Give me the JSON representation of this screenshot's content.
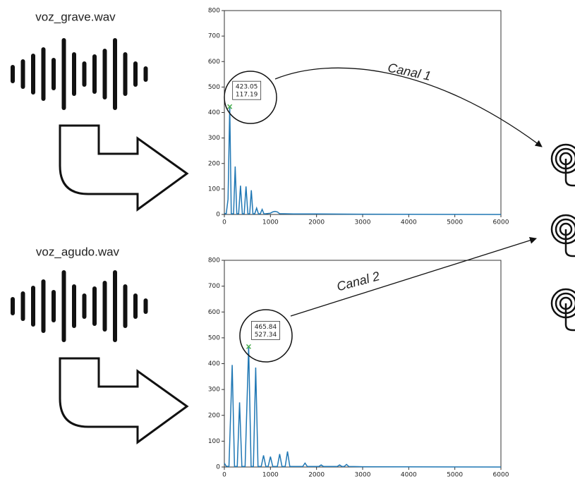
{
  "files": [
    "voz_grave.wav",
    "voz_agudo.wav"
  ],
  "channels": [
    "Canal 1",
    "Canal 2"
  ],
  "chart_data": [
    {
      "type": "line",
      "color": "#1f77b4",
      "x": [
        0,
        40,
        80,
        117,
        150,
        200,
        235,
        270,
        310,
        350,
        390,
        430,
        470,
        510,
        550,
        585,
        620,
        660,
        700,
        740,
        780,
        820,
        860,
        1000,
        1050,
        1100,
        1150,
        1200,
        1500,
        2000,
        3000,
        6000
      ],
      "values": [
        5,
        2,
        60,
        423,
        2,
        3,
        188,
        2,
        3,
        113,
        2,
        3,
        110,
        2,
        3,
        95,
        2,
        3,
        25,
        2,
        3,
        20,
        2,
        5,
        10,
        12,
        10,
        3,
        2,
        2,
        1,
        0
      ],
      "xlim": [
        0,
        6000
      ],
      "ylim": [
        0,
        800
      ],
      "xticks": [
        0,
        1000,
        2000,
        3000,
        4000,
        5000,
        6000
      ],
      "yticks": [
        0,
        100,
        200,
        300,
        400,
        500,
        600,
        700,
        800
      ],
      "annotation": {
        "y": 423.05,
        "x": 117.19
      }
    },
    {
      "type": "line",
      "color": "#1f77b4",
      "x": [
        0,
        40,
        100,
        170,
        220,
        280,
        330,
        380,
        450,
        527,
        580,
        630,
        680,
        730,
        800,
        850,
        900,
        950,
        1000,
        1050,
        1150,
        1200,
        1250,
        1320,
        1370,
        1420,
        1700,
        1750,
        1800,
        2050,
        2100,
        2150,
        2450,
        2500,
        2550,
        2600,
        2650,
        2700,
        3000,
        6000
      ],
      "values": [
        15,
        3,
        2,
        395,
        2,
        2,
        250,
        2,
        2,
        465,
        2,
        2,
        385,
        2,
        2,
        45,
        2,
        2,
        40,
        2,
        2,
        50,
        2,
        2,
        60,
        2,
        2,
        15,
        2,
        2,
        8,
        2,
        2,
        8,
        2,
        2,
        10,
        2,
        1,
        0
      ],
      "xlim": [
        0,
        6000
      ],
      "ylim": [
        0,
        800
      ],
      "xticks": [
        0,
        1000,
        2000,
        3000,
        4000,
        5000,
        6000
      ],
      "yticks": [
        0,
        100,
        200,
        300,
        400,
        500,
        600,
        700,
        800
      ],
      "annotation": {
        "y": 465.84,
        "x": 527.34
      }
    }
  ]
}
